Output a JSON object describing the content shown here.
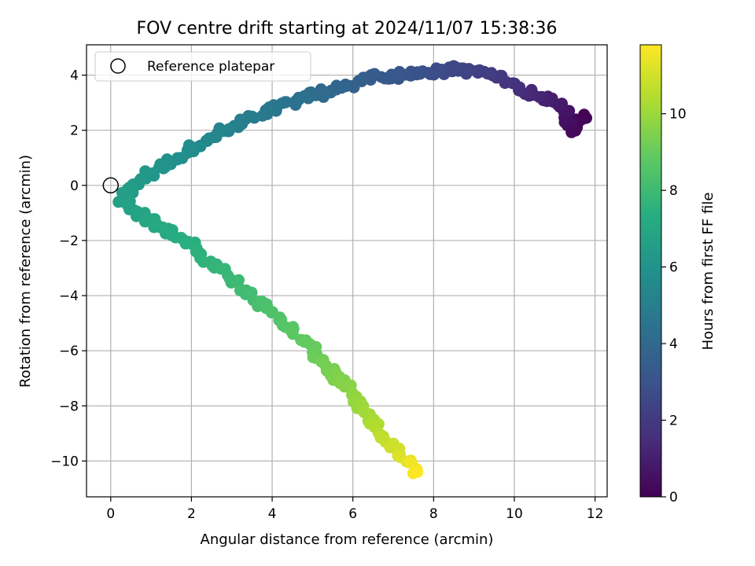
{
  "chart_data": {
    "type": "scatter",
    "title": "FOV centre drift starting at 2024/11/07 15:38:36",
    "xlabel": "Angular distance from reference (arcmin)",
    "ylabel": "Rotation from reference (arcmin)",
    "xlim": [
      -0.6,
      12.3
    ],
    "ylim": [
      -11.3,
      5.1
    ],
    "xticks": [
      0,
      2,
      4,
      6,
      8,
      10,
      12
    ],
    "yticks": [
      4,
      2,
      0,
      -2,
      -4,
      -6,
      -8,
      -10
    ],
    "grid": true,
    "legend": {
      "entry": "Reference platepar",
      "placement": "top-left"
    },
    "reference_point": {
      "x": 0,
      "y": 0
    },
    "colorbar": {
      "label": "Hours from first FF file",
      "range": [
        0,
        11.8
      ],
      "ticks": [
        0,
        2,
        4,
        6,
        8,
        10
      ],
      "colormap": "viridis"
    },
    "track_keypoints": [
      {
        "x": 11.75,
        "y": 2.5,
        "h": 0.0
      },
      {
        "x": 11.4,
        "y": 2.0,
        "h": 0.3
      },
      {
        "x": 11.2,
        "y": 2.9,
        "h": 0.7
      },
      {
        "x": 10.7,
        "y": 3.2,
        "h": 1.1
      },
      {
        "x": 10.0,
        "y": 3.6,
        "h": 1.6
      },
      {
        "x": 9.5,
        "y": 4.0,
        "h": 2.0
      },
      {
        "x": 8.5,
        "y": 4.2,
        "h": 2.5
      },
      {
        "x": 7.5,
        "y": 4.05,
        "h": 3.0
      },
      {
        "x": 6.5,
        "y": 3.9,
        "h": 3.4
      },
      {
        "x": 5.5,
        "y": 3.5,
        "h": 3.9
      },
      {
        "x": 4.5,
        "y": 3.0,
        "h": 4.4
      },
      {
        "x": 3.5,
        "y": 2.5,
        "h": 4.9
      },
      {
        "x": 2.5,
        "y": 1.7,
        "h": 5.4
      },
      {
        "x": 1.5,
        "y": 0.9,
        "h": 5.9
      },
      {
        "x": 0.6,
        "y": 0.1,
        "h": 6.4
      },
      {
        "x": 0.3,
        "y": -0.5,
        "h": 6.6
      },
      {
        "x": 1.0,
        "y": -1.3,
        "h": 7.0
      },
      {
        "x": 2.0,
        "y": -2.2,
        "h": 7.4
      },
      {
        "x": 3.0,
        "y": -3.4,
        "h": 7.9
      },
      {
        "x": 4.0,
        "y": -4.6,
        "h": 8.4
      },
      {
        "x": 5.0,
        "y": -6.0,
        "h": 9.0
      },
      {
        "x": 5.8,
        "y": -7.3,
        "h": 9.6
      },
      {
        "x": 6.5,
        "y": -8.7,
        "h": 10.3
      },
      {
        "x": 7.1,
        "y": -9.7,
        "h": 11.0
      },
      {
        "x": 7.6,
        "y": -10.4,
        "h": 11.8
      }
    ]
  }
}
